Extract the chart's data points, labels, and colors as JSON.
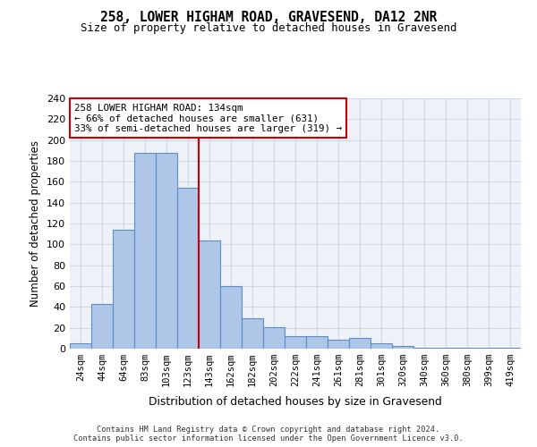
{
  "title1": "258, LOWER HIGHAM ROAD, GRAVESEND, DA12 2NR",
  "title2": "Size of property relative to detached houses in Gravesend",
  "xlabel": "Distribution of detached houses by size in Gravesend",
  "ylabel": "Number of detached properties",
  "bar_values": [
    5,
    43,
    114,
    188,
    188,
    154,
    104,
    60,
    29,
    21,
    12,
    12,
    9,
    10,
    5,
    3,
    1,
    1,
    1,
    1,
    1
  ],
  "bar_labels": [
    "24sqm",
    "44sqm",
    "64sqm",
    "83sqm",
    "103sqm",
    "123sqm",
    "143sqm",
    "162sqm",
    "182sqm",
    "202sqm",
    "222sqm",
    "241sqm",
    "261sqm",
    "281sqm",
    "301sqm",
    "320sqm",
    "340sqm",
    "360sqm",
    "380sqm",
    "399sqm",
    "419sqm"
  ],
  "bar_color": "#aec6e8",
  "bar_edge_color": "#5a8fc4",
  "grid_color": "#d0d8e8",
  "background_color": "#eef2f8",
  "annotation_text": "258 LOWER HIGHAM ROAD: 134sqm\n← 66% of detached houses are smaller (631)\n33% of semi-detached houses are larger (319) →",
  "annotation_box_color": "#ffffff",
  "annotation_box_edge_color": "#cc0000",
  "vline_x": 5.5,
  "vline_color": "#cc0000",
  "ylim": [
    0,
    240
  ],
  "yticks": [
    0,
    20,
    40,
    60,
    80,
    100,
    120,
    140,
    160,
    180,
    200,
    220,
    240
  ],
  "footer1": "Contains HM Land Registry data © Crown copyright and database right 2024.",
  "footer2": "Contains public sector information licensed under the Open Government Licence v3.0."
}
